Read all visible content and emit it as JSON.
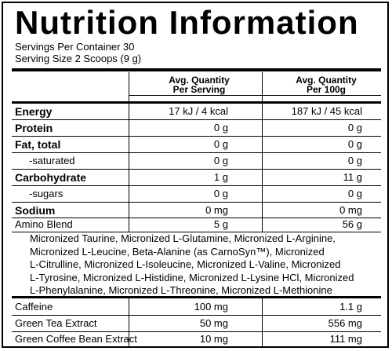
{
  "title": "Nutrition Information",
  "servings_per_container": "Servings Per Container 30",
  "serving_size": "Serving Size 2 Scoops (9 g)",
  "headers": {
    "per_serving_line1": "Avg. Quantity",
    "per_serving_line2": "Per Serving",
    "per_100g_line1": "Avg. Quantity",
    "per_100g_line2": "Per 100g"
  },
  "rows": [
    {
      "label": "Energy",
      "per_serving": "17 kJ / 4 kcal",
      "per_100g": "187 kJ / 45 kcal"
    },
    {
      "label": "Protein",
      "per_serving": "0 g",
      "per_100g": "0 g"
    },
    {
      "label": "Fat, total",
      "per_serving": "0 g",
      "per_100g": "0 g"
    },
    {
      "label": "-saturated",
      "per_serving": "0 g",
      "per_100g": "0 g"
    },
    {
      "label": "Carbohydrate",
      "per_serving": "1 g",
      "per_100g": "11 g"
    },
    {
      "label": "-sugars",
      "per_serving": "0 g",
      "per_100g": "0 g"
    },
    {
      "label": "Sodium",
      "per_serving": "0 mg",
      "per_100g": "0 mg"
    },
    {
      "label": "Amino Blend",
      "per_serving": "5 g",
      "per_100g": "56 g"
    }
  ],
  "amino_blend_ingredients": "Micronized Taurine, Micronized L-Glutamine, Micronized L-Arginine,\nMicronized L-Leucine, Beta-Alanine (as CarnoSyn™), Micronized\nL-Citrulline, Micronized L-Isoleucine, Micronized L-Valine, Micronized\nL-Tyrosine, Micronized L-Histidine, Micronized L-Lysine HCl, Micronized\nL-Phenylalanine, Micronized L-Threonine, Micronized L-Methionine",
  "extras": [
    {
      "label": "Caffeine",
      "per_serving": "100 mg",
      "per_100g": "1.1 g"
    },
    {
      "label": "Green Tea Extract",
      "per_serving": "50 mg",
      "per_100g": "556 mg"
    },
    {
      "label": "Green Coffee Bean Extract",
      "per_serving": "10 mg",
      "per_100g": "111 mg"
    }
  ]
}
